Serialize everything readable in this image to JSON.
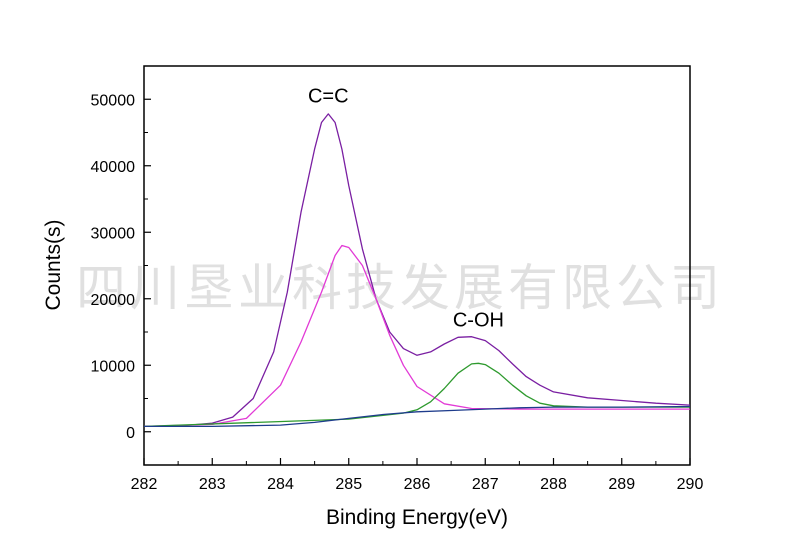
{
  "chart_data": {
    "type": "line",
    "title": "",
    "xlabel": "Binding Energy(eV)",
    "ylabel": "Counts(s)",
    "xlim": [
      282,
      290
    ],
    "ylim": [
      -5000,
      55000
    ],
    "x_ticks": [
      282,
      283,
      284,
      285,
      286,
      287,
      288,
      289,
      290
    ],
    "y_ticks": [
      0,
      10000,
      20000,
      30000,
      40000,
      50000
    ],
    "grid": false,
    "legend": "none",
    "annotations": [
      {
        "text": "C=C",
        "x": 284.7,
        "y": 49500
      },
      {
        "text": "C-OH",
        "x": 286.9,
        "y": 15800
      }
    ],
    "watermark": "四川垦业科技发展有限公司",
    "series": [
      {
        "color": "#7a1fa2",
        "x": [
          282.0,
          282.5,
          283.0,
          283.3,
          283.6,
          283.9,
          284.1,
          284.3,
          284.5,
          284.6,
          284.7,
          284.8,
          284.9,
          285.0,
          285.2,
          285.4,
          285.6,
          285.8,
          286.0,
          286.2,
          286.4,
          286.6,
          286.8,
          287.0,
          287.2,
          287.4,
          287.6,
          287.8,
          288.0,
          288.5,
          289.0,
          289.5,
          290.0
        ],
        "y": [
          800,
          850,
          1300,
          2200,
          5000,
          12000,
          21000,
          33000,
          42500,
          46500,
          47800,
          46500,
          42500,
          37000,
          27500,
          20000,
          15000,
          12500,
          11500,
          12000,
          13200,
          14200,
          14300,
          13700,
          12200,
          10200,
          8300,
          7000,
          6000,
          5100,
          4700,
          4300,
          4000
        ]
      },
      {
        "color": "#e23ad6",
        "x": [
          282.0,
          283.0,
          283.5,
          284.0,
          284.3,
          284.6,
          284.8,
          284.9,
          285.0,
          285.2,
          285.4,
          285.6,
          285.8,
          286.0,
          286.4,
          286.8,
          287.5,
          290.0
        ],
        "y": [
          800,
          1100,
          2000,
          7000,
          13500,
          21000,
          26500,
          28000,
          27700,
          25000,
          20000,
          14500,
          10000,
          6800,
          4200,
          3500,
          3400,
          3400
        ]
      },
      {
        "color": "#2e9a2e",
        "x": [
          282.0,
          285.0,
          285.8,
          286.0,
          286.2,
          286.4,
          286.6,
          286.8,
          286.9,
          287.0,
          287.2,
          287.4,
          287.6,
          287.8,
          288.0,
          288.5,
          290.0
        ],
        "y": [
          800,
          1900,
          2800,
          3300,
          4500,
          6500,
          8800,
          10200,
          10300,
          10100,
          8800,
          7000,
          5400,
          4300,
          3900,
          3700,
          3700
        ]
      },
      {
        "color": "#1e3c8c",
        "x": [
          282.0,
          283.0,
          284.0,
          284.5,
          285.0,
          285.5,
          286.0,
          286.5,
          287.0,
          287.5,
          288.0,
          288.5,
          289.0,
          290.0
        ],
        "y": [
          800,
          800,
          1000,
          1400,
          2000,
          2600,
          3000,
          3200,
          3400,
          3600,
          3700,
          3700,
          3700,
          3800
        ]
      }
    ]
  }
}
